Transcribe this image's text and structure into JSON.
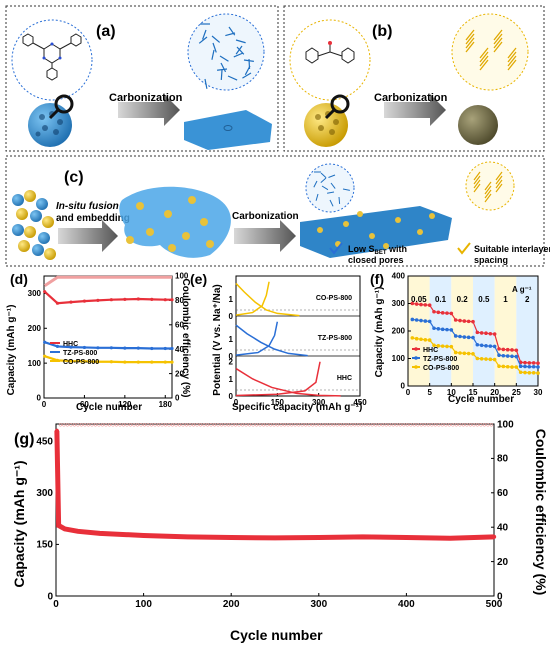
{
  "panels": {
    "a": {
      "letter": "(a)",
      "arrow_label": "Carbonization"
    },
    "b": {
      "letter": "(b)",
      "arrow_label": "Carbonization"
    },
    "c": {
      "letter": "(c)",
      "step1_line1": "In-situ fusion",
      "step1_line2": "and embedding",
      "arrow_label": "Carbonization",
      "legend_blue_line1": "Low S",
      "legend_blue_sub": "BET",
      "legend_blue_suffix": " with",
      "legend_blue_line2": "closed pores",
      "legend_yellow_line1": "Suitable interlayer",
      "legend_yellow_line2": "spacing"
    },
    "d": {
      "letter": "(d)",
      "ylabel": "Capacity (mAh g⁻¹)",
      "y2label": "Coulombic efficiency (%)",
      "xlabel": "Cycle number"
    },
    "e": {
      "letter": "(e)",
      "ylabel": "Potential (V vs. Na⁺/Na)",
      "xlabel": "Specific capacity (mAh g⁻¹)"
    },
    "f": {
      "letter": "(f)",
      "ylabel": "Capacity (mAh g⁻¹)",
      "xlabel": "Cycle number",
      "rate_unit": "A g⁻¹"
    },
    "g": {
      "letter": "(g)",
      "ylabel": "Capacity (mAh g⁻¹)",
      "y2label": "Coulombic efficiency (%)",
      "xlabel": "Cycle number"
    }
  },
  "colors": {
    "HHC": "#e8303a",
    "TZ-PS-800": "#2a6fd6",
    "CO-PS-800": "#f5c200",
    "blue_material": "#3a93d6",
    "yellow_material": "#e8c23a"
  },
  "chart_data": [
    {
      "panel": "d",
      "type": "line",
      "x": [
        1,
        20,
        40,
        60,
        80,
        100,
        120,
        140,
        160,
        180,
        190
      ],
      "xlim": [
        0,
        190
      ],
      "xticks": [
        0,
        60,
        120,
        180
      ],
      "ylim": [
        0,
        350
      ],
      "yticks": [
        0,
        100,
        200,
        300
      ],
      "y2lim": [
        0,
        100
      ],
      "y2ticks": [
        0,
        20,
        40,
        60,
        80,
        100
      ],
      "series": [
        {
          "name": "HHC",
          "values": [
            305,
            272,
            275,
            278,
            280,
            282,
            283,
            284,
            283,
            282,
            282
          ]
        },
        {
          "name": "TZ-PS-800",
          "values": [
            160,
            148,
            146,
            145,
            144,
            144,
            143,
            143,
            142,
            142,
            142
          ]
        },
        {
          "name": "CO-PS-800",
          "values": [
            120,
            108,
            106,
            105,
            104,
            104,
            103,
            103,
            103,
            103,
            103
          ]
        }
      ],
      "ce": [
        92,
        99,
        99,
        99,
        99,
        99,
        99,
        99,
        99,
        99,
        99
      ],
      "legend_position": "bottom-left"
    },
    {
      "panel": "e",
      "type": "line",
      "xlim": [
        0,
        450
      ],
      "xticks": [
        0,
        150,
        300,
        450
      ],
      "groups": [
        {
          "name": "CO-PS-800",
          "yticks": [
            0,
            1
          ],
          "charge": [
            [
              0,
              0.05
            ],
            [
              60,
              0.2
            ],
            [
              95,
              0.6
            ],
            [
              110,
              1.2
            ],
            [
              120,
              2.0
            ]
          ],
          "discharge": [
            [
              0,
              1.9
            ],
            [
              30,
              1.4
            ],
            [
              70,
              0.8
            ],
            [
              110,
              0.35
            ],
            [
              150,
              0.15
            ],
            [
              230,
              0.02
            ]
          ]
        },
        {
          "name": "TZ-PS-800",
          "yticks": [
            0,
            1
          ],
          "charge": [
            [
              0,
              0.05
            ],
            [
              80,
              0.2
            ],
            [
              120,
              0.6
            ],
            [
              140,
              1.2
            ],
            [
              150,
              2.0
            ]
          ],
          "discharge": [
            [
              0,
              1.8
            ],
            [
              40,
              1.3
            ],
            [
              90,
              0.8
            ],
            [
              140,
              0.4
            ],
            [
              190,
              0.15
            ],
            [
              260,
              0.02
            ]
          ]
        },
        {
          "name": "HHC",
          "yticks": [
            0,
            1,
            2
          ],
          "charge": [
            [
              0,
              0.03
            ],
            [
              150,
              0.1
            ],
            [
              250,
              0.3
            ],
            [
              290,
              0.8
            ],
            [
              305,
              2.0
            ]
          ],
          "discharge": [
            [
              0,
              1.6
            ],
            [
              60,
              1.0
            ],
            [
              130,
              0.5
            ],
            [
              220,
              0.15
            ],
            [
              300,
              0.04
            ],
            [
              380,
              0.01
            ]
          ]
        }
      ]
    },
    {
      "panel": "f",
      "type": "line",
      "x": [
        1,
        2,
        3,
        4,
        5,
        6,
        7,
        8,
        9,
        10,
        11,
        12,
        13,
        14,
        15,
        16,
        17,
        18,
        19,
        20,
        21,
        22,
        23,
        24,
        25,
        26,
        27,
        28,
        29,
        30
      ],
      "xlim": [
        0,
        30
      ],
      "xticks": [
        0,
        5,
        10,
        15,
        20,
        25,
        30
      ],
      "ylim": [
        0,
        400
      ],
      "yticks": [
        0,
        100,
        200,
        300,
        400
      ],
      "rates": [
        "0.05",
        "0.1",
        "0.2",
        "0.5",
        "1",
        "2"
      ],
      "rate_bands": [
        [
          0,
          5
        ],
        [
          5,
          10
        ],
        [
          10,
          15
        ],
        [
          15,
          20
        ],
        [
          20,
          25
        ],
        [
          25,
          30
        ]
      ],
      "series": [
        {
          "name": "HHC",
          "values": [
            300,
            298,
            296,
            295,
            294,
            270,
            268,
            266,
            265,
            264,
            240,
            238,
            236,
            235,
            234,
            195,
            193,
            192,
            190,
            189,
            135,
            133,
            132,
            131,
            130,
            86,
            85,
            84,
            84,
            83
          ]
        },
        {
          "name": "TZ-PS-800",
          "values": [
            242,
            240,
            238,
            236,
            235,
            210,
            208,
            206,
            205,
            204,
            182,
            180,
            178,
            177,
            176,
            150,
            148,
            146,
            145,
            144,
            112,
            110,
            109,
            108,
            107,
            72,
            71,
            70,
            70,
            69
          ]
        },
        {
          "name": "CO-PS-800",
          "values": [
            175,
            172,
            170,
            168,
            167,
            148,
            146,
            145,
            144,
            143,
            122,
            120,
            119,
            118,
            117,
            100,
            99,
            98,
            97,
            96,
            72,
            71,
            70,
            69,
            69,
            50,
            49,
            48,
            48,
            47
          ]
        }
      ],
      "legend_position": "bottom-left"
    },
    {
      "panel": "g",
      "type": "scatter",
      "x": [
        1,
        3,
        10,
        25,
        50,
        100,
        150,
        200,
        250,
        300,
        350,
        400,
        450,
        500
      ],
      "xlim": [
        0,
        500
      ],
      "xticks": [
        0,
        100,
        200,
        300,
        400,
        500
      ],
      "ylim": [
        0,
        500
      ],
      "yticks": [
        0,
        150,
        300,
        450
      ],
      "y2lim": [
        0,
        100
      ],
      "y2ticks": [
        0,
        20,
        40,
        60,
        80,
        100
      ],
      "series": [
        {
          "name": "HHC",
          "values": [
            480,
            205,
            195,
            188,
            182,
            176,
            172,
            170,
            169,
            170,
            172,
            170,
            168,
            172
          ]
        }
      ],
      "ce": [
        95,
        99,
        99.5,
        99.5,
        99.5,
        99.5,
        99.5,
        99.5,
        99.5,
        99.5,
        99.5,
        99.5,
        99.5,
        99.5
      ]
    }
  ]
}
